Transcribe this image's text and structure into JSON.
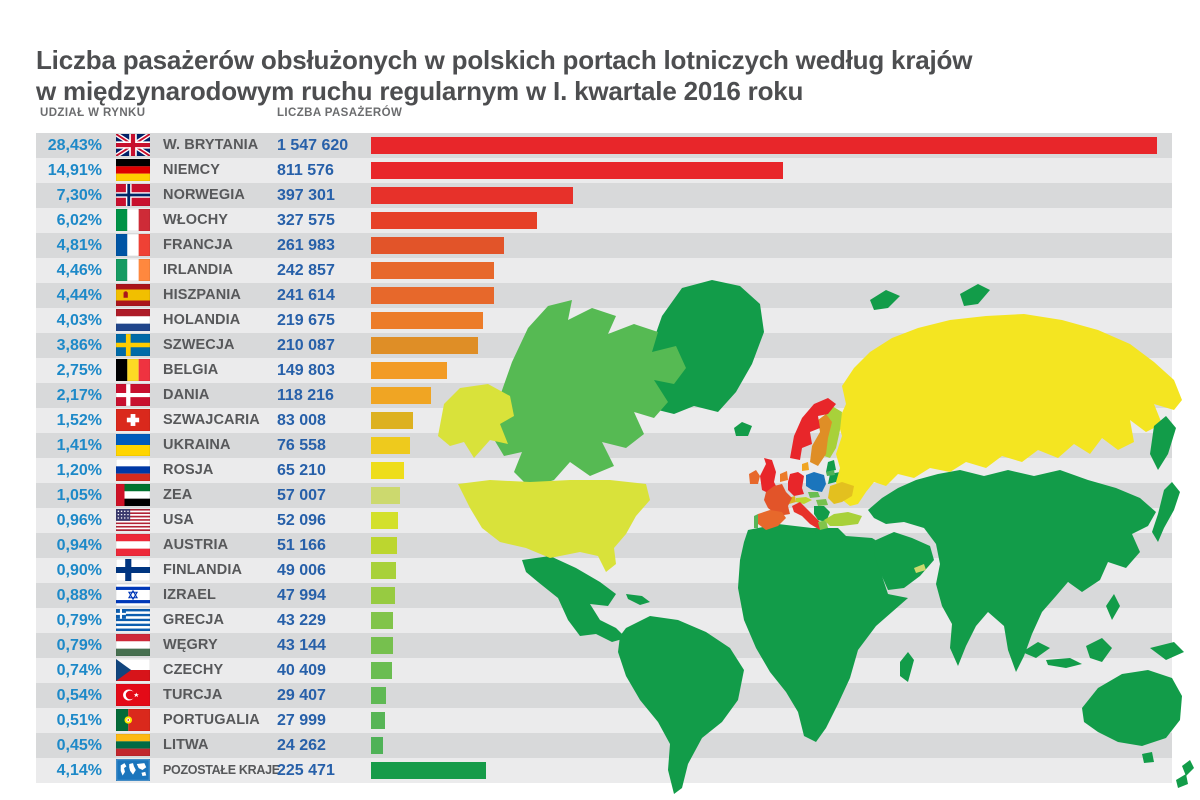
{
  "title": {
    "line1": "Liczba pasażerów obsłużonych w polskich portach lotniczych według krajów",
    "line2": "w międzynarodowym ruchu regularnym w I. kwartale 2016 roku"
  },
  "columns": {
    "share": "UDZIAŁ W RYNKU",
    "passengers": "LICZBA PASAŻERÓW"
  },
  "chart_data": {
    "type": "bar",
    "title": "Liczba pasażerów obsłużonych w polskich portach lotniczych według krajów w międzynarodowym ruchu regularnym w I. kwartale 2016 roku",
    "xlim": [
      0,
      1547620
    ],
    "max_value": 1547620,
    "rows": [
      {
        "share": "28,43%",
        "country": "W. BRYTANIA",
        "flag": "gb",
        "passengers": "1 547 620",
        "value": 1547620,
        "color": "#e8262a"
      },
      {
        "share": "14,91%",
        "country": "NIEMCY",
        "flag": "de",
        "passengers": "811 576",
        "value": 811576,
        "color": "#e8262a"
      },
      {
        "share": "7,30%",
        "country": "NORWEGIA",
        "flag": "no",
        "passengers": "397 301",
        "value": 397301,
        "color": "#e7312a"
      },
      {
        "share": "6,02%",
        "country": "WŁOCHY",
        "flag": "it",
        "passengers": "327 575",
        "value": 327575,
        "color": "#e64027"
      },
      {
        "share": "4,81%",
        "country": "FRANCJA",
        "flag": "fr",
        "passengers": "261 983",
        "value": 261983,
        "color": "#e25429"
      },
      {
        "share": "4,46%",
        "country": "IRLANDIA",
        "flag": "ie",
        "passengers": "242 857",
        "value": 242857,
        "color": "#e7682b"
      },
      {
        "share": "4,44%",
        "country": "HISZPANIA",
        "flag": "es",
        "passengers": "241 614",
        "value": 241614,
        "color": "#e7682b"
      },
      {
        "share": "4,03%",
        "country": "HOLANDIA",
        "flag": "nl",
        "passengers": "219 675",
        "value": 219675,
        "color": "#ec7c29"
      },
      {
        "share": "3,86%",
        "country": "SZWECJA",
        "flag": "se",
        "passengers": "210 087",
        "value": 210087,
        "color": "#df8e26"
      },
      {
        "share": "2,75%",
        "country": "BELGIA",
        "flag": "be",
        "passengers": "149 803",
        "value": 149803,
        "color": "#f29b25"
      },
      {
        "share": "2,17%",
        "country": "DANIA",
        "flag": "dk",
        "passengers": "118 216",
        "value": 118216,
        "color": "#f0a523"
      },
      {
        "share": "1,52%",
        "country": "SZWAJCARIA",
        "flag": "ch",
        "passengers": "83 008",
        "value": 83008,
        "color": "#ddb120"
      },
      {
        "share": "1,41%",
        "country": "UKRAINA",
        "flag": "ua",
        "passengers": "76 558",
        "value": 76558,
        "color": "#eeca1d"
      },
      {
        "share": "1,20%",
        "country": "ROSJA",
        "flag": "ru",
        "passengers": "65 210",
        "value": 65210,
        "color": "#eedd1b"
      },
      {
        "share": "1,05%",
        "country": "ZEA",
        "flag": "ae",
        "passengers": "57 007",
        "value": 57007,
        "color": "#ccd96e"
      },
      {
        "share": "0,96%",
        "country": "USA",
        "flag": "us",
        "passengers": "52 096",
        "value": 52096,
        "color": "#d3e02b"
      },
      {
        "share": "0,94%",
        "country": "AUSTRIA",
        "flag": "at",
        "passengers": "51 166",
        "value": 51166,
        "color": "#bcd62f"
      },
      {
        "share": "0,90%",
        "country": "FINLANDIA",
        "flag": "fi",
        "passengers": "49 006",
        "value": 49006,
        "color": "#a8d13a"
      },
      {
        "share": "0,88%",
        "country": "IZRAEL",
        "flag": "il",
        "passengers": "47 994",
        "value": 47994,
        "color": "#97cb41"
      },
      {
        "share": "0,79%",
        "country": "GRECJA",
        "flag": "gr",
        "passengers": "43 229",
        "value": 43229,
        "color": "#81c44a"
      },
      {
        "share": "0,79%",
        "country": "WĘGRY",
        "flag": "hu",
        "passengers": "43 144",
        "value": 43144,
        "color": "#76c04e"
      },
      {
        "share": "0,74%",
        "country": "CZECHY",
        "flag": "cz",
        "passengers": "40 409",
        "value": 40409,
        "color": "#6abd51"
      },
      {
        "share": "0,54%",
        "country": "TURCJA",
        "flag": "tr",
        "passengers": "29 407",
        "value": 29407,
        "color": "#5fb954"
      },
      {
        "share": "0,51%",
        "country": "PORTUGALIA",
        "flag": "pt",
        "passengers": "27 999",
        "value": 27999,
        "color": "#57b556"
      },
      {
        "share": "0,45%",
        "country": "LITWA",
        "flag": "lt",
        "passengers": "24 262",
        "value": 24262,
        "color": "#4fb257"
      },
      {
        "share": "4,14%",
        "country": "POZOSTAŁE KRAJE",
        "flag": "world",
        "passengers": "225 471",
        "value": 225471,
        "color": "#169b49"
      }
    ]
  },
  "map": {
    "home_country": "Polska",
    "colors": {
      "default": "#129c49",
      "canada": "#56ba53",
      "usa": "#d9e23a",
      "alaska": "#d9e23a",
      "russia": "#f4e521",
      "poland": "#1b75bc",
      "uk": "#e8262a",
      "norway": "#e8262a",
      "germany": "#e8262a",
      "italy": "#e7312a",
      "france": "#e25429",
      "ireland": "#e7682b",
      "spain": "#e7682b",
      "netherlands": "#ec7c29",
      "sweden": "#df8e26",
      "belgium": "#f29b25",
      "denmark": "#f0a523",
      "switzerland": "#ddb120",
      "ukraine": "#e3c01f",
      "austria": "#bcd62f",
      "finland": "#a8d13a",
      "israel": "#97cb41",
      "greece": "#81c44a",
      "hungary": "#76c04e",
      "czechia": "#6abd51",
      "turkey": "#a8d13a",
      "portugal": "#57b556",
      "lithuania": "#4fb257",
      "uae": "#ccd96e"
    }
  }
}
